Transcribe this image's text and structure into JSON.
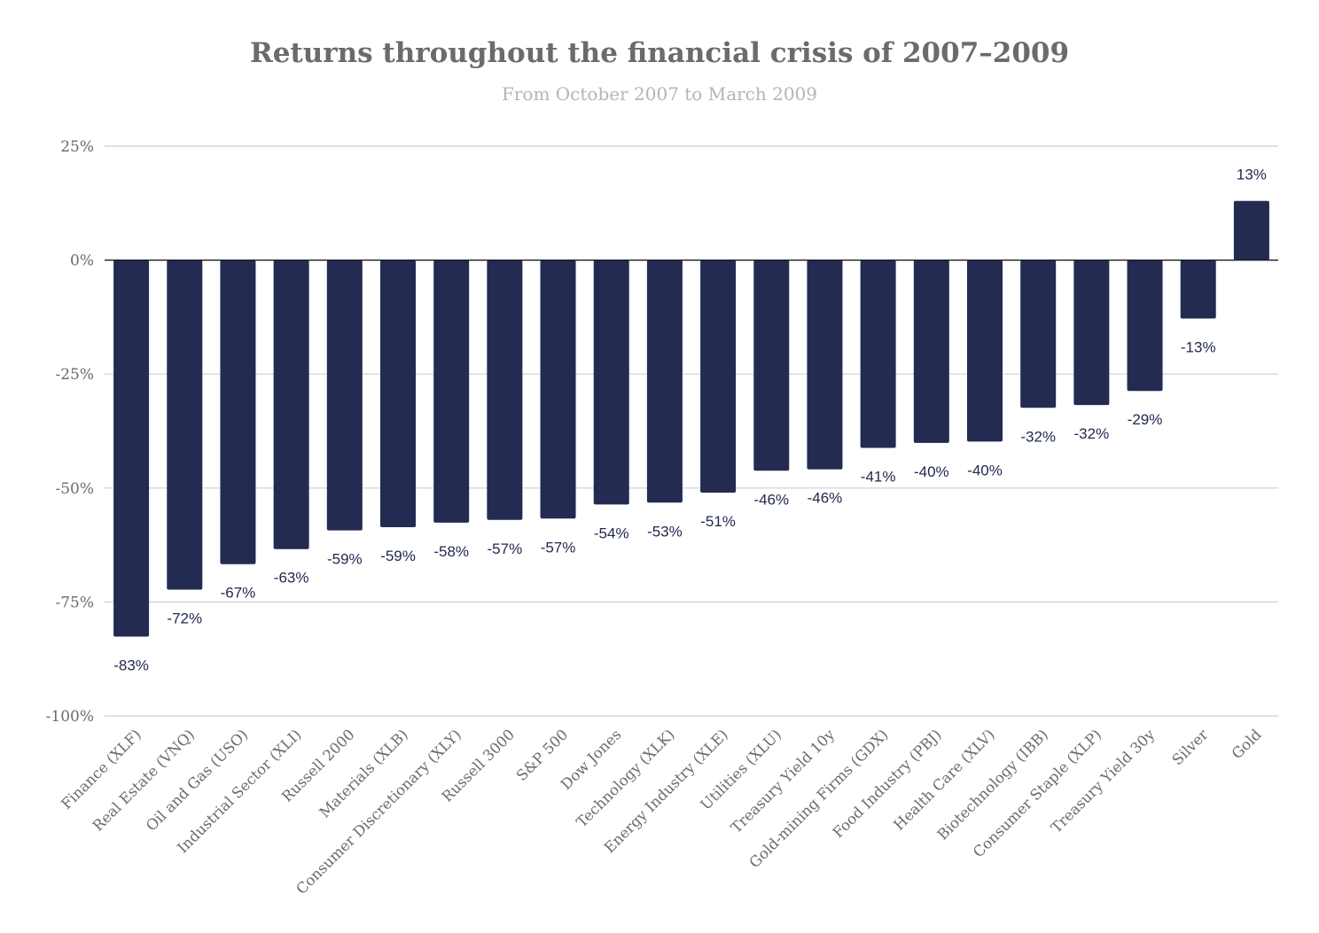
{
  "title": "Returns throughout the financial crisis of 2007–2009",
  "subtitle": "From October 2007 to March 2009",
  "chart_data": {
    "type": "bar",
    "title": "Returns throughout the financial crisis of 2007–2009",
    "subtitle": "From October 2007 to March 2009",
    "xlabel": "",
    "ylabel": "",
    "ylim": [
      -100,
      25
    ],
    "yticks": [
      25,
      0,
      -25,
      -50,
      -75,
      -100
    ],
    "ytick_labels": [
      "25%",
      "0%",
      "-25%",
      "-50%",
      "-75%",
      "-100%"
    ],
    "grid": true,
    "legend": "none",
    "bar_color": "#232b52",
    "categories": [
      "Finance (XLF)",
      "Real Estate (VNQ)",
      "Oil and Gas (USO)",
      "Industrial Sector (XLI)",
      "Russell 2000",
      "Materials (XLB)",
      "Consumer Discretionary (XLY)",
      "Russell 3000",
      "S&P 500",
      "Dow Jones",
      "Technology (XLK)",
      "Energy Industry (XLE)",
      "Utilities (XLU)",
      "Treasury Yield 10y",
      "Gold-mining Firms (GDX)",
      "Food Industry (PBJ)",
      "Health Care (XLV)",
      "Biotechnology (IBB)",
      "Consumer Staple (XLP)",
      "Treasury Yield 30y",
      "Silver",
      "Gold"
    ],
    "values": [
      -82.6,
      -72.3,
      -66.7,
      -63.4,
      -59.3,
      -58.6,
      -57.6,
      -57.0,
      -56.7,
      -53.6,
      -53.2,
      -51.0,
      -46.2,
      -45.9,
      -41.2,
      -40.1,
      -39.8,
      -32.4,
      -31.8,
      -28.7,
      -12.8,
      13.0
    ],
    "data_labels": [
      "-83%",
      "-72%",
      "-67%",
      "-63%",
      "-59%",
      "-59%",
      "-58%",
      "-57%",
      "-57%",
      "-54%",
      "-53%",
      "-51%",
      "-46%",
      "-46%",
      "-41%",
      "-40%",
      "-40%",
      "-32%",
      "-32%",
      "-29%",
      "-13%",
      "13%"
    ]
  }
}
